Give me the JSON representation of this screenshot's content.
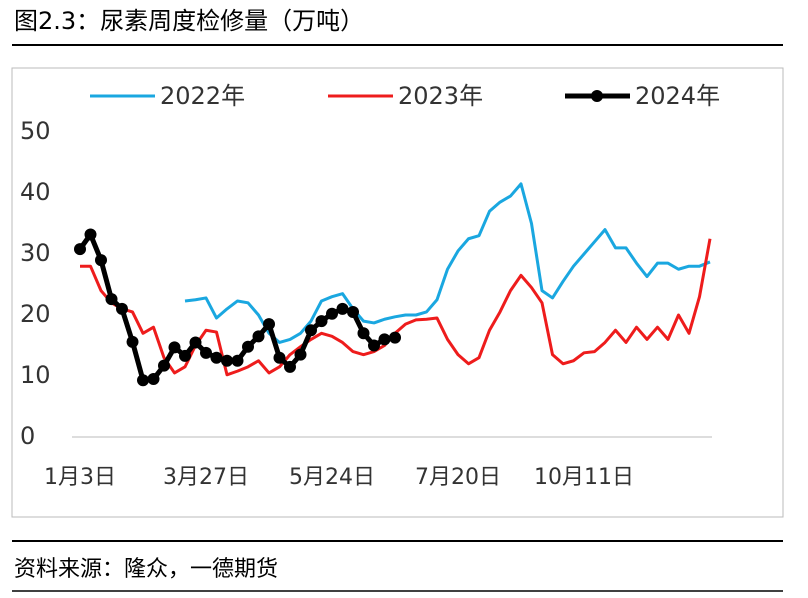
{
  "title": "图2.3：尿素周度检修量（万吨）",
  "source": "资料来源：隆众，一德期货",
  "chart_data": {
    "type": "line",
    "categories": [
      "1月3日",
      null,
      null,
      null,
      null,
      null,
      null,
      null,
      null,
      null,
      null,
      null,
      "3月27日",
      null,
      null,
      null,
      null,
      null,
      null,
      null,
      null,
      null,
      null,
      null,
      "5月24日",
      null,
      null,
      null,
      null,
      null,
      null,
      null,
      null,
      null,
      null,
      null,
      "7月20日",
      null,
      null,
      null,
      null,
      null,
      null,
      null,
      null,
      null,
      null,
      null,
      "10月11日",
      null,
      null,
      null,
      null,
      null,
      null,
      null,
      null,
      null,
      null,
      null,
      null
    ],
    "series": [
      {
        "name": "2022年",
        "color": "#1aa7e0",
        "marker": false,
        "values": [
          null,
          null,
          null,
          null,
          null,
          null,
          null,
          null,
          null,
          null,
          22.3,
          22.5,
          22.8,
          19.5,
          21,
          22.3,
          22,
          20,
          17,
          15.5,
          16,
          17,
          19,
          22.3,
          23,
          23.5,
          21,
          19,
          18.7,
          19.3,
          19.7,
          20,
          20,
          20.5,
          22.5,
          27.5,
          30.5,
          32.5,
          33,
          37,
          38.5,
          39.5,
          41.5,
          35,
          24,
          22.8,
          25.5,
          28,
          30,
          32,
          34,
          31,
          31,
          28.5,
          26.3,
          28.5,
          28.5,
          27.5,
          28,
          28,
          28.7
        ]
      },
      {
        "name": "2023年",
        "color": "#ee1c1c",
        "marker": false,
        "values": [
          28,
          28,
          24,
          22,
          21,
          20.5,
          17,
          18,
          13,
          10.5,
          11.5,
          15,
          17.5,
          17.2,
          10.2,
          10.8,
          11.5,
          12.5,
          10.5,
          11.5,
          13.5,
          14.8,
          16,
          17,
          16.5,
          15.5,
          14,
          13.5,
          14,
          15,
          17,
          18.5,
          19.2,
          19.3,
          19.5,
          16,
          13.5,
          12,
          13,
          17.5,
          20.5,
          24,
          26.5,
          24.5,
          22,
          13.5,
          12,
          12.5,
          13.8,
          14,
          15.5,
          17.5,
          15.5,
          18,
          16,
          18,
          16,
          20,
          17,
          23,
          32.5
        ]
      },
      {
        "name": "2024年",
        "color": "#000000",
        "marker": true,
        "values": [
          30.8,
          33.2,
          29,
          22.6,
          21,
          15.6,
          9.3,
          9.5,
          11.7,
          14.7,
          13.3,
          15.5,
          13.8,
          13,
          12.5,
          12.5,
          14.8,
          16.5,
          18.5,
          13,
          11.5,
          13.5,
          17.5,
          19,
          20.2,
          21,
          20.5,
          17,
          15,
          16,
          16.3,
          null,
          null,
          null,
          null,
          null,
          null,
          null,
          null,
          null,
          null,
          null,
          null,
          null,
          null,
          null,
          null,
          null,
          null,
          null,
          null,
          null,
          null,
          null,
          null,
          null,
          null,
          null,
          null,
          null,
          null
        ]
      }
    ],
    "ylim": [
      0,
      50
    ],
    "yticks": [
      0,
      10,
      20,
      30,
      40,
      50
    ],
    "grid": false
  }
}
